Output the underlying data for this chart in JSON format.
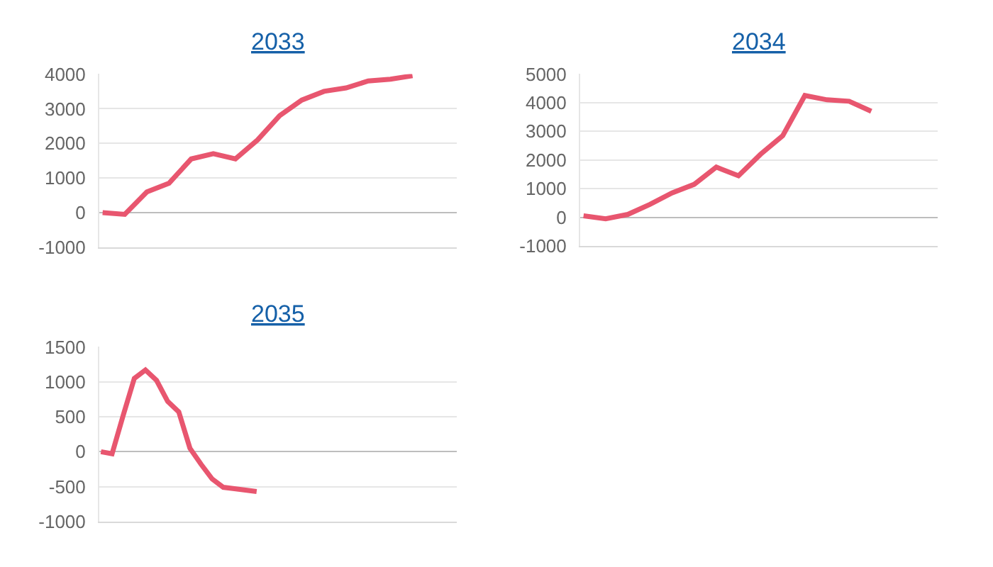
{
  "chart_data": [
    {
      "type": "line",
      "title": "2033",
      "categories": [
        null,
        null,
        null,
        null,
        null,
        null,
        null,
        null,
        null,
        null,
        null,
        null,
        null,
        null,
        null,
        null,
        null
      ],
      "series": [
        {
          "color": "#e8566f",
          "values": [
            0,
            -50,
            600,
            850,
            1550,
            1700,
            1550,
            2100,
            2800,
            3250,
            3500,
            3600,
            3800,
            3850,
            3950,
            null,
            null
          ]
        }
      ],
      "ylim": [
        -1000,
        4000
      ],
      "yticks": [
        -1000,
        0,
        1000,
        2000,
        3000,
        4000
      ],
      "grid": "y",
      "marker": "none",
      "line_style": "solid"
    },
    {
      "type": "line",
      "title": "2034",
      "categories": [
        null,
        null,
        null,
        null,
        null,
        null,
        null,
        null,
        null,
        null,
        null,
        null,
        null,
        null,
        null,
        null,
        null
      ],
      "series": [
        {
          "color": "#e8566f",
          "values": [
            50,
            -50,
            100,
            450,
            850,
            1150,
            1750,
            1450,
            2200,
            2850,
            4250,
            4100,
            4050,
            3700,
            null,
            null,
            null
          ]
        }
      ],
      "ylim": [
        -1000,
        5000
      ],
      "yticks": [
        -1000,
        0,
        1000,
        2000,
        3000,
        4000,
        5000
      ],
      "grid": "y",
      "marker": "none",
      "line_style": "solid"
    },
    {
      "type": "line",
      "title": "2035",
      "categories": [
        null,
        null,
        null,
        null,
        null,
        null,
        null,
        null,
        null,
        null,
        null,
        null,
        null,
        null,
        null,
        null,
        null,
        null,
        null,
        null,
        null,
        null,
        null,
        null,
        null,
        null,
        null,
        null,
        null,
        null,
        null,
        null,
        null
      ],
      "series": [
        {
          "color": "#e8566f",
          "values": [
            0,
            -30,
            520,
            1050,
            1170,
            1020,
            720,
            570,
            50,
            -180,
            -390,
            -510,
            -530,
            -550,
            -570,
            null,
            null,
            null,
            null,
            null,
            null,
            null,
            null,
            null,
            null,
            null,
            null,
            null,
            null,
            null,
            null,
            null,
            null
          ]
        }
      ],
      "ylim": [
        -1000,
        1500
      ],
      "yticks": [
        -1000,
        -500,
        0,
        500,
        1000,
        1500
      ],
      "grid": "y",
      "marker": "none",
      "line_style": "solid"
    }
  ]
}
